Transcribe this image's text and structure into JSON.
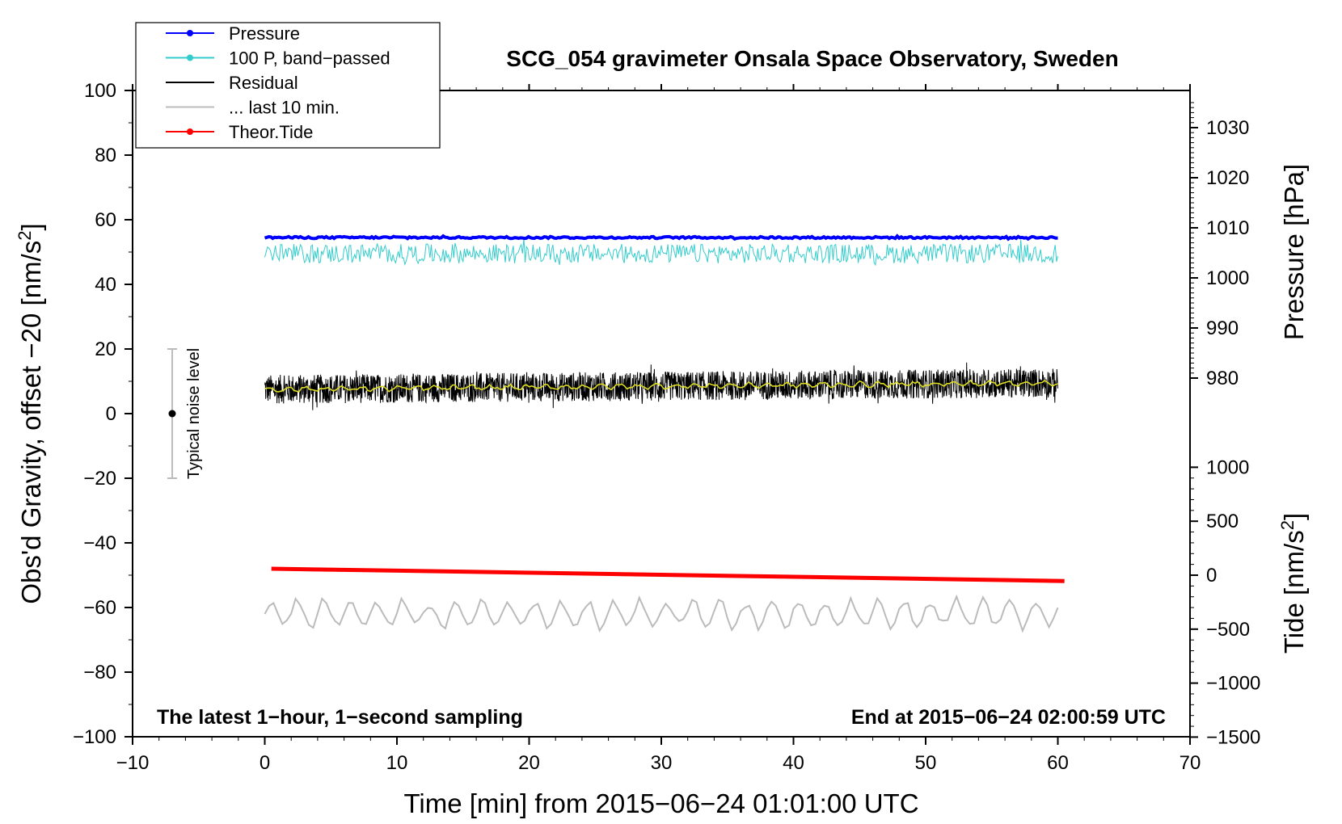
{
  "chart_data": {
    "type": "line",
    "title": "SCG_054 gravimeter Onsala Space Observatory, Sweden",
    "xlabel": "Time [min] from 2015−06−24 01:01:00 UTC",
    "ylabel_left": "Obs'd Gravity, offset −20 [nm/s",
    "ylabel_left_sup": "2",
    "ylabel_left_end": "]",
    "ylabel_right_pressure": "Pressure [hPa]",
    "ylabel_right_tide": "Tide [nm/s",
    "ylabel_right_tide_sup": "2",
    "ylabel_right_tide_end": "]",
    "xlim": [
      -10,
      70
    ],
    "ylim_left": [
      -100,
      100
    ],
    "x_ticks": [
      "−10",
      "0",
      "10",
      "20",
      "30",
      "40",
      "50",
      "60",
      "70"
    ],
    "y_ticks_left": [
      "100",
      "80",
      "60",
      "40",
      "20",
      "0",
      "−20",
      "−40",
      "−60",
      "−80",
      "−100"
    ],
    "pressure_ticks": [
      "1030",
      "1020",
      "1010",
      "1000",
      "990",
      "980"
    ],
    "tide_ticks": [
      "1000",
      "500",
      "0",
      "−500",
      "−1000",
      "−1500"
    ],
    "legend": [
      {
        "label": "Pressure",
        "color": "#0000ff",
        "marker": true
      },
      {
        "label": "100 P, band−passed",
        "color": "#33cccc",
        "marker": true
      },
      {
        "label": "Residual",
        "color": "#000000",
        "marker": false
      },
      {
        "label": "... last 10 min.",
        "color": "#bbbbbb",
        "marker": false
      },
      {
        "label": "Theor.Tide",
        "color": "#ff0000",
        "marker": true
      }
    ],
    "series": [
      {
        "name": "Pressure",
        "color": "#0000ff",
        "x_range": [
          0,
          60
        ],
        "level": 54.5,
        "noise": 0.3
      },
      {
        "name": "100 P, band−passed",
        "color": "#33cccc",
        "x_range": [
          0,
          60
        ],
        "level": 49.5,
        "noise": 3.0
      },
      {
        "name": "Residual",
        "color": "#000000",
        "x_range": [
          0,
          60
        ],
        "level_start": 7.5,
        "level_end": 9.5,
        "noise": 4.5
      },
      {
        "name": "Residual smoothed",
        "color": "#dddd22",
        "x_range": [
          0,
          60
        ],
        "level_start": 7.5,
        "level_end": 9.5,
        "noise": 1.0
      },
      {
        "name": "... last 10 min.",
        "color": "#bbbbbb",
        "x_range": [
          0,
          60
        ],
        "level": -62,
        "noise": 4.0
      },
      {
        "name": "Theor.Tide",
        "color": "#ff0000",
        "x_range": [
          0.5,
          60.5
        ],
        "y_start": -48,
        "y_end": -51.8
      }
    ],
    "noise_marker": {
      "x": -7,
      "center": 0,
      "low": -20,
      "high": 20,
      "label": "Typical noise level"
    },
    "annotations": {
      "bottom_left": "The latest 1−hour, 1−second sampling",
      "bottom_right": "End at 2015−06−24 02:00:59 UTC"
    }
  }
}
